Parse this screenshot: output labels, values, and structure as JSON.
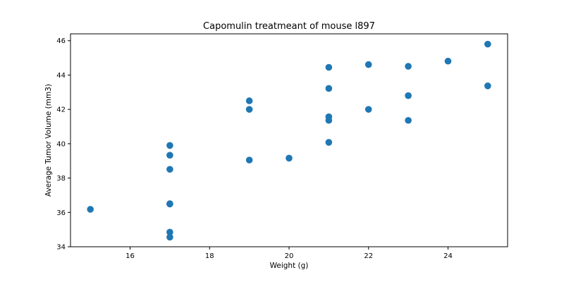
{
  "chart_data": {
    "type": "scatter",
    "title": "Capomulin treatmeant of mouse l897",
    "xlabel": "Weight (g)",
    "ylabel": "Average Tumor Volume (mm3)",
    "xlim": [
      14.5,
      25.5
    ],
    "ylim": [
      34,
      46.4
    ],
    "xticks": [
      16,
      18,
      20,
      22,
      24
    ],
    "yticks": [
      34,
      36,
      38,
      40,
      42,
      44,
      46
    ],
    "grid": false,
    "marker_color": "#1f77b4",
    "points": [
      {
        "x": 15,
        "y": 36.18
      },
      {
        "x": 17,
        "y": 34.85
      },
      {
        "x": 17,
        "y": 34.56
      },
      {
        "x": 17,
        "y": 36.51
      },
      {
        "x": 17,
        "y": 36.49
      },
      {
        "x": 17,
        "y": 38.51
      },
      {
        "x": 17,
        "y": 39.33
      },
      {
        "x": 17,
        "y": 39.9
      },
      {
        "x": 19,
        "y": 39.05
      },
      {
        "x": 19,
        "y": 42.0
      },
      {
        "x": 19,
        "y": 42.5
      },
      {
        "x": 20,
        "y": 39.16
      },
      {
        "x": 21,
        "y": 40.08
      },
      {
        "x": 21,
        "y": 41.36
      },
      {
        "x": 21,
        "y": 41.57
      },
      {
        "x": 21,
        "y": 43.22
      },
      {
        "x": 21,
        "y": 44.45
      },
      {
        "x": 22,
        "y": 42.0
      },
      {
        "x": 22,
        "y": 44.61
      },
      {
        "x": 23,
        "y": 41.36
      },
      {
        "x": 23,
        "y": 42.8
      },
      {
        "x": 23,
        "y": 44.51
      },
      {
        "x": 24,
        "y": 44.81
      },
      {
        "x": 25,
        "y": 43.37
      },
      {
        "x": 25,
        "y": 45.8
      }
    ]
  }
}
